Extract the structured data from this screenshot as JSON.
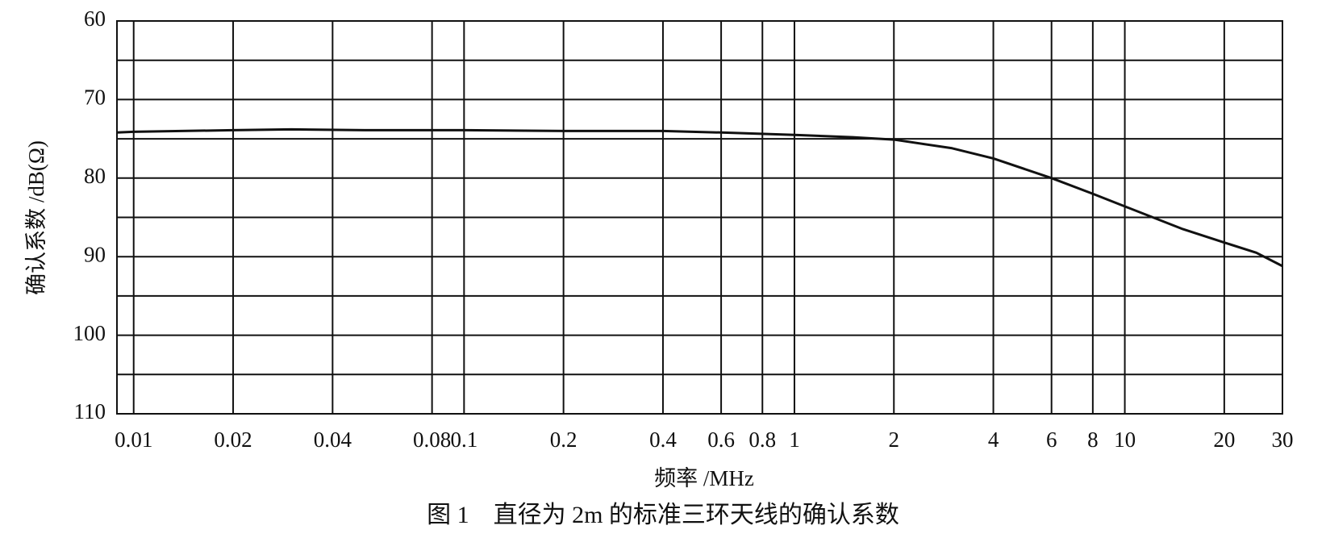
{
  "chart_data": {
    "type": "line",
    "x_label": "频率 /MHz",
    "y_label": "确认系数 /dB(Ω)",
    "caption": "图 1　直径为 2m 的标准三环天线的确认系数",
    "xscale": "log",
    "xlim": [
      0.0089,
      30
    ],
    "xticks": [
      0.01,
      0.02,
      0.04,
      0.08,
      0.1,
      0.2,
      0.4,
      0.6,
      0.8,
      1,
      2,
      4,
      6,
      8,
      10,
      20,
      30
    ],
    "ylim": [
      110,
      60
    ],
    "yticks": [
      60,
      70,
      80,
      90,
      100,
      110
    ],
    "grid": true,
    "minor_y_grid": true,
    "x": [
      0.0089,
      0.01,
      0.02,
      0.03,
      0.05,
      0.1,
      0.2,
      0.4,
      0.6,
      1,
      1.5,
      2,
      3,
      4,
      6,
      8,
      10,
      15,
      20,
      25,
      30
    ],
    "series": [
      {
        "color": "#111111",
        "values": [
          74.2,
          74.1,
          73.9,
          73.8,
          73.9,
          73.9,
          74.0,
          74.0,
          74.2,
          74.5,
          74.8,
          75.1,
          76.2,
          77.5,
          80.0,
          82.0,
          83.6,
          86.5,
          88.2,
          89.5,
          91.2
        ]
      }
    ]
  }
}
